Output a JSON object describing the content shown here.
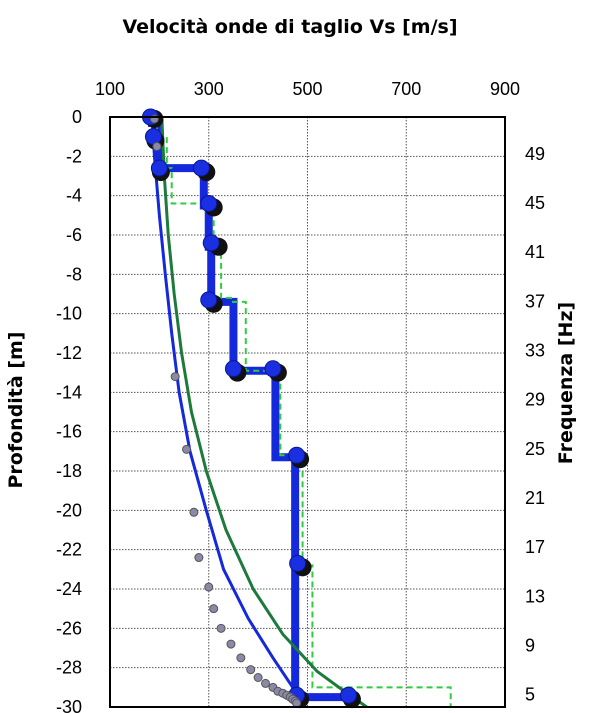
{
  "chart_data": {
    "type": "line",
    "title": "Velocità onde di taglio Vs [m/s]",
    "xlabel": "Velocità onde di taglio Vs [m/s]",
    "ylabel": "Profondità [m]",
    "y2label": "Frequenza [Hz]",
    "xlim": [
      100,
      900
    ],
    "ylim": [
      -30,
      0
    ],
    "y2lim": [
      4,
      52
    ],
    "x_ticks": [
      "100",
      "300",
      "500",
      "700",
      "900"
    ],
    "y_ticks": [
      "0",
      "-2",
      "-4",
      "-6",
      "-8",
      "-10",
      "-12",
      "-14",
      "-16",
      "-18",
      "-20",
      "-22",
      "-24",
      "-26",
      "-28",
      "-30"
    ],
    "y2_ticks": [
      "49",
      "45",
      "41",
      "37",
      "33",
      "29",
      "25",
      "21",
      "17",
      "13",
      "9",
      "5"
    ],
    "x_axis_position": "top",
    "grid": true,
    "legend": "none",
    "series": [
      {
        "kind": "profile-thick",
        "color": "#1428dc",
        "x": [
          185,
          185,
          195,
          195,
          200,
          200,
          290,
          290,
          300,
          300,
          305,
          305,
          305,
          305,
          350,
          350,
          435,
          435,
          475,
          475,
          475,
          475,
          475,
          475,
          590,
          590
        ],
        "y": [
          0,
          -0.3,
          -0.3,
          -1.2,
          -1.2,
          -2.6,
          -2.6,
          -4.5,
          -4.5,
          -6.6,
          -6.6,
          -9.4,
          -9.4,
          -9.4,
          -9.4,
          -12.9,
          -12.9,
          -17.3,
          -17.3,
          -22.8,
          -22.8,
          -29.5,
          -29.5,
          -29.5,
          -29.5,
          -29.7
        ]
      },
      {
        "kind": "profile-dashed",
        "color": "#2ecc40",
        "x": [
          195,
          195,
          215,
          215,
          225,
          225,
          310,
          310,
          325,
          325,
          345,
          345,
          375,
          375,
          445,
          445,
          490,
          490,
          510,
          510,
          790,
          790
        ],
        "y": [
          0,
          -1.0,
          -1.0,
          -2.6,
          -2.6,
          -4.4,
          -4.4,
          -6.5,
          -6.5,
          -9.2,
          -9.2,
          -9.4,
          -9.4,
          -12.9,
          -12.9,
          -17.2,
          -17.2,
          -22.8,
          -22.8,
          -29.0,
          -29.0,
          -30.0
        ]
      },
      {
        "kind": "dispersion-blue",
        "color": "#1428dc",
        "x": [
          185,
          190,
          200,
          212,
          225,
          240,
          262,
          295,
          330,
          380,
          430,
          470,
          490
        ],
        "y": [
          0,
          -2,
          -5,
          -8,
          -11,
          -14,
          -17,
          -20,
          -23,
          -25.5,
          -27.5,
          -29,
          -29.8
        ]
      },
      {
        "kind": "dispersion-green",
        "color": "#1e7a3c",
        "x": [
          205,
          210,
          218,
          230,
          245,
          265,
          295,
          335,
          390,
          450,
          520,
          580,
          620
        ],
        "y": [
          0,
          -3,
          -6,
          -9,
          -12,
          -15,
          -18,
          -21,
          -24,
          -26.3,
          -28.2,
          -29.3,
          -30
        ]
      }
    ],
    "circle_markers_dark": {
      "x": [
        190,
        192,
        203,
        295,
        310,
        320,
        310,
        358,
        440,
        485,
        490,
        485,
        590
      ],
      "y": [
        -0.1,
        -1.2,
        -2.8,
        -2.8,
        -4.6,
        -6.6,
        -9.5,
        -13.0,
        -13.0,
        -17.4,
        -22.9,
        -29.6,
        -29.6
      ]
    },
    "circle_markers_blue": {
      "x": [
        182,
        188,
        200,
        285,
        300,
        305,
        300,
        350,
        430,
        478,
        480,
        478,
        583
      ],
      "y": [
        0,
        -1.0,
        -2.6,
        -2.6,
        -4.4,
        -6.4,
        -9.3,
        -12.8,
        -12.8,
        -17.2,
        -22.7,
        -29.4,
        -29.4
      ]
    },
    "small_gray_markers": {
      "x": [
        190,
        195,
        232,
        255,
        270,
        280,
        300,
        310,
        325,
        345,
        365,
        385,
        400,
        415,
        430,
        440,
        450,
        458,
        465,
        470,
        475,
        478
      ],
      "y": [
        -0.1,
        -1.5,
        -13.2,
        -16.9,
        -20.1,
        -22.4,
        -23.9,
        -25.0,
        -26.0,
        -26.8,
        -27.5,
        -28.1,
        -28.5,
        -28.8,
        -29.0,
        -29.2,
        -29.3,
        -29.4,
        -29.5,
        -29.6,
        -29.7,
        -29.8
      ]
    }
  }
}
